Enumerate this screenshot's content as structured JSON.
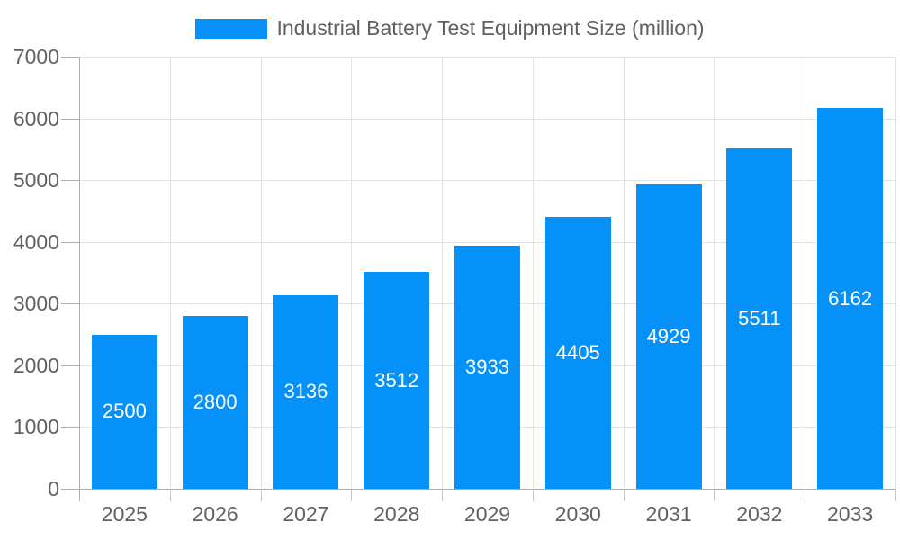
{
  "legend": {
    "label": "Industrial Battery Test Equipment Size (million)"
  },
  "colors": {
    "bar": "#0691f8",
    "bar_label": "#ffffff",
    "axis_text": "#616161",
    "legend_text": "#616161",
    "grid_line": "#e3e3e3",
    "axis_line": "#adadad",
    "tick_line": "#c9c9c9",
    "background": "#ffffff"
  },
  "chart_data": {
    "type": "bar",
    "title": "Industrial Battery Test Equipment Size (million)",
    "categories": [
      "2025",
      "2026",
      "2027",
      "2028",
      "2029",
      "2030",
      "2031",
      "2032",
      "2033"
    ],
    "values": [
      2500,
      2800,
      3136,
      3512,
      3933,
      4405,
      4929,
      5511,
      6162
    ],
    "series_name": "Industrial Battery Test Equipment Size (million)",
    "xlabel": "",
    "ylabel": "",
    "ylim": [
      0,
      7000
    ],
    "ytick_step": 1000,
    "ytick_labels": [
      "0",
      "1000",
      "2000",
      "3000",
      "4000",
      "5000",
      "6000",
      "7000"
    ],
    "grid": true,
    "legend_position": "top",
    "bar_labels_visible": true,
    "bar_label_position": "center"
  }
}
